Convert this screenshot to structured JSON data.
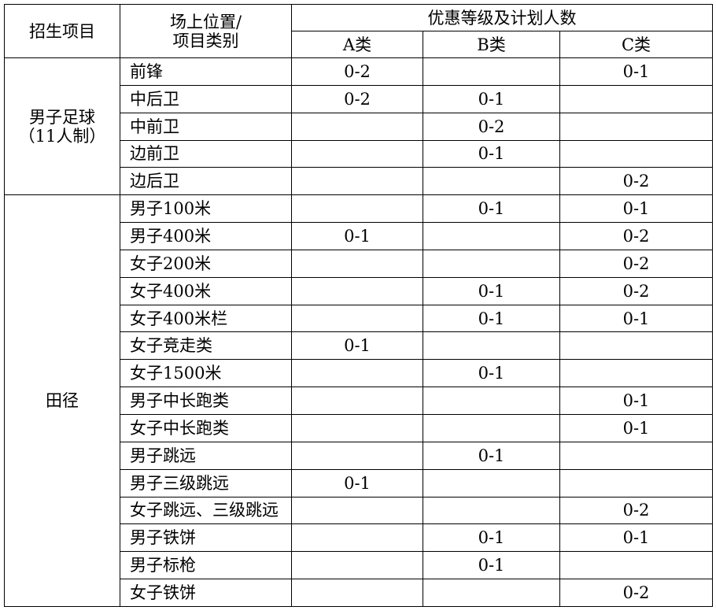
{
  "header": {
    "project": "招生项目",
    "position_line1": "场上位置/",
    "position_line2": "项目类别",
    "level_group": "优惠等级及计划人数",
    "levels": [
      "A类",
      "B类",
      "C类"
    ]
  },
  "groups": [
    {
      "name_line1": "男子足球",
      "name_line2": "（11人制）",
      "rows": [
        {
          "item": "前锋",
          "a": "0-2",
          "b": "",
          "c": "0-1"
        },
        {
          "item": "中后卫",
          "a": "0-2",
          "b": "0-1",
          "c": ""
        },
        {
          "item": "中前卫",
          "a": "",
          "b": "0-2",
          "c": ""
        },
        {
          "item": "边前卫",
          "a": "",
          "b": "0-1",
          "c": ""
        },
        {
          "item": "边后卫",
          "a": "",
          "b": "",
          "c": "0-2"
        }
      ]
    },
    {
      "name_line1": "田径",
      "name_line2": "",
      "rows": [
        {
          "item": "男子100米",
          "a": "",
          "b": "0-1",
          "c": "0-1"
        },
        {
          "item": "男子400米",
          "a": "0-1",
          "b": "",
          "c": "0-2"
        },
        {
          "item": "女子200米",
          "a": "",
          "b": "",
          "c": "0-2"
        },
        {
          "item": "女子400米",
          "a": "",
          "b": "0-1",
          "c": "0-2"
        },
        {
          "item": "女子400米栏",
          "a": "",
          "b": "0-1",
          "c": "0-1"
        },
        {
          "item": "女子竞走类",
          "a": "0-1",
          "b": "",
          "c": ""
        },
        {
          "item": "女子1500米",
          "a": "",
          "b": "0-1",
          "c": ""
        },
        {
          "item": "男子中长跑类",
          "a": "",
          "b": "",
          "c": "0-1"
        },
        {
          "item": "女子中长跑类",
          "a": "",
          "b": "",
          "c": "0-1"
        },
        {
          "item": "男子跳远",
          "a": "",
          "b": "0-1",
          "c": ""
        },
        {
          "item": "男子三级跳远",
          "a": "0-1",
          "b": "",
          "c": ""
        },
        {
          "item": "女子跳远、三级跳远",
          "a": "",
          "b": "",
          "c": "0-2"
        },
        {
          "item": "男子铁饼",
          "a": "",
          "b": "0-1",
          "c": "0-1"
        },
        {
          "item": "男子标枪",
          "a": "",
          "b": "0-1",
          "c": ""
        },
        {
          "item": "女子铁饼",
          "a": "",
          "b": "",
          "c": "0-2"
        }
      ]
    }
  ]
}
